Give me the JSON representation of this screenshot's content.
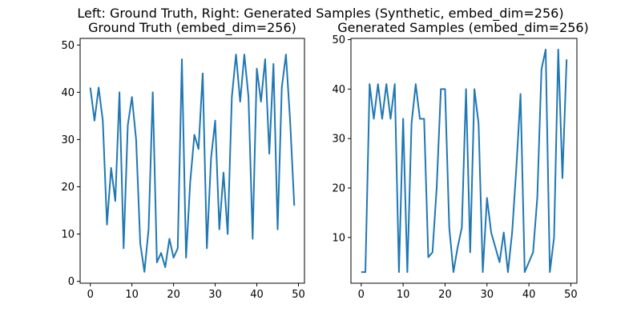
{
  "figure": {
    "suptitle": "Left: Ground Truth, Right: Generated Samples (Synthetic, embed_dim=256)"
  },
  "colors": {
    "line": "#1f77b4",
    "axes": "#000000",
    "background": "#ffffff"
  },
  "chart_data": [
    {
      "type": "line",
      "title": "Ground Truth (embed_dim=256)",
      "xlabel": "",
      "ylabel": "",
      "grid": false,
      "xlim": [
        -2.45,
        51.45
      ],
      "ylim": [
        -0.4,
        51.4
      ],
      "xticks": [
        0,
        10,
        20,
        30,
        40,
        50
      ],
      "yticks": [
        0,
        10,
        20,
        30,
        40,
        50
      ],
      "series": [
        {
          "x": [
            0,
            1,
            2,
            3,
            4,
            5,
            6,
            7,
            8,
            9,
            10,
            11,
            12,
            13,
            14,
            15,
            16,
            17,
            18,
            19,
            20,
            21,
            22,
            23,
            24,
            25,
            26,
            27,
            28,
            29,
            30,
            31,
            32,
            33,
            34,
            35,
            36,
            37,
            38,
            39,
            40,
            41,
            42,
            43,
            44,
            45,
            46,
            47,
            48,
            49
          ],
          "values": [
            41,
            34,
            41,
            34,
            12,
            24,
            17,
            40,
            7,
            33,
            39,
            30,
            8,
            2,
            11,
            40,
            4,
            6,
            3,
            9,
            5,
            7,
            47,
            5,
            21,
            31,
            28,
            44,
            7,
            26,
            34,
            11,
            23,
            10,
            39,
            48,
            38,
            48,
            39,
            9,
            45,
            38,
            47,
            27,
            46,
            11,
            41,
            48,
            34,
            16
          ]
        }
      ]
    },
    {
      "type": "line",
      "title": "Generated Samples (embed_dim=256)",
      "xlabel": "",
      "ylabel": "",
      "grid": false,
      "xlim": [
        -2.45,
        51.45
      ],
      "ylim": [
        0.75,
        50.25
      ],
      "xticks": [
        0,
        10,
        20,
        30,
        40,
        50
      ],
      "yticks": [
        10,
        20,
        30,
        40,
        50
      ],
      "series": [
        {
          "x": [
            0,
            1,
            2,
            3,
            4,
            5,
            6,
            7,
            8,
            9,
            10,
            11,
            12,
            13,
            14,
            15,
            16,
            17,
            18,
            19,
            20,
            21,
            22,
            23,
            24,
            25,
            26,
            27,
            28,
            29,
            30,
            31,
            32,
            33,
            34,
            35,
            36,
            37,
            38,
            39,
            40,
            41,
            42,
            43,
            44,
            45,
            46,
            47,
            48,
            49
          ],
          "values": [
            3,
            3,
            41,
            34,
            41,
            34,
            41,
            34,
            41,
            3,
            34,
            3,
            33,
            41,
            34,
            34,
            6,
            7,
            20,
            40,
            40,
            12,
            3,
            8,
            12,
            40,
            7,
            40,
            33,
            3,
            18,
            11,
            8,
            5,
            11,
            3,
            11,
            24,
            39,
            3,
            5,
            7,
            18,
            44,
            48,
            3,
            10,
            48,
            22,
            46
          ]
        }
      ]
    }
  ]
}
